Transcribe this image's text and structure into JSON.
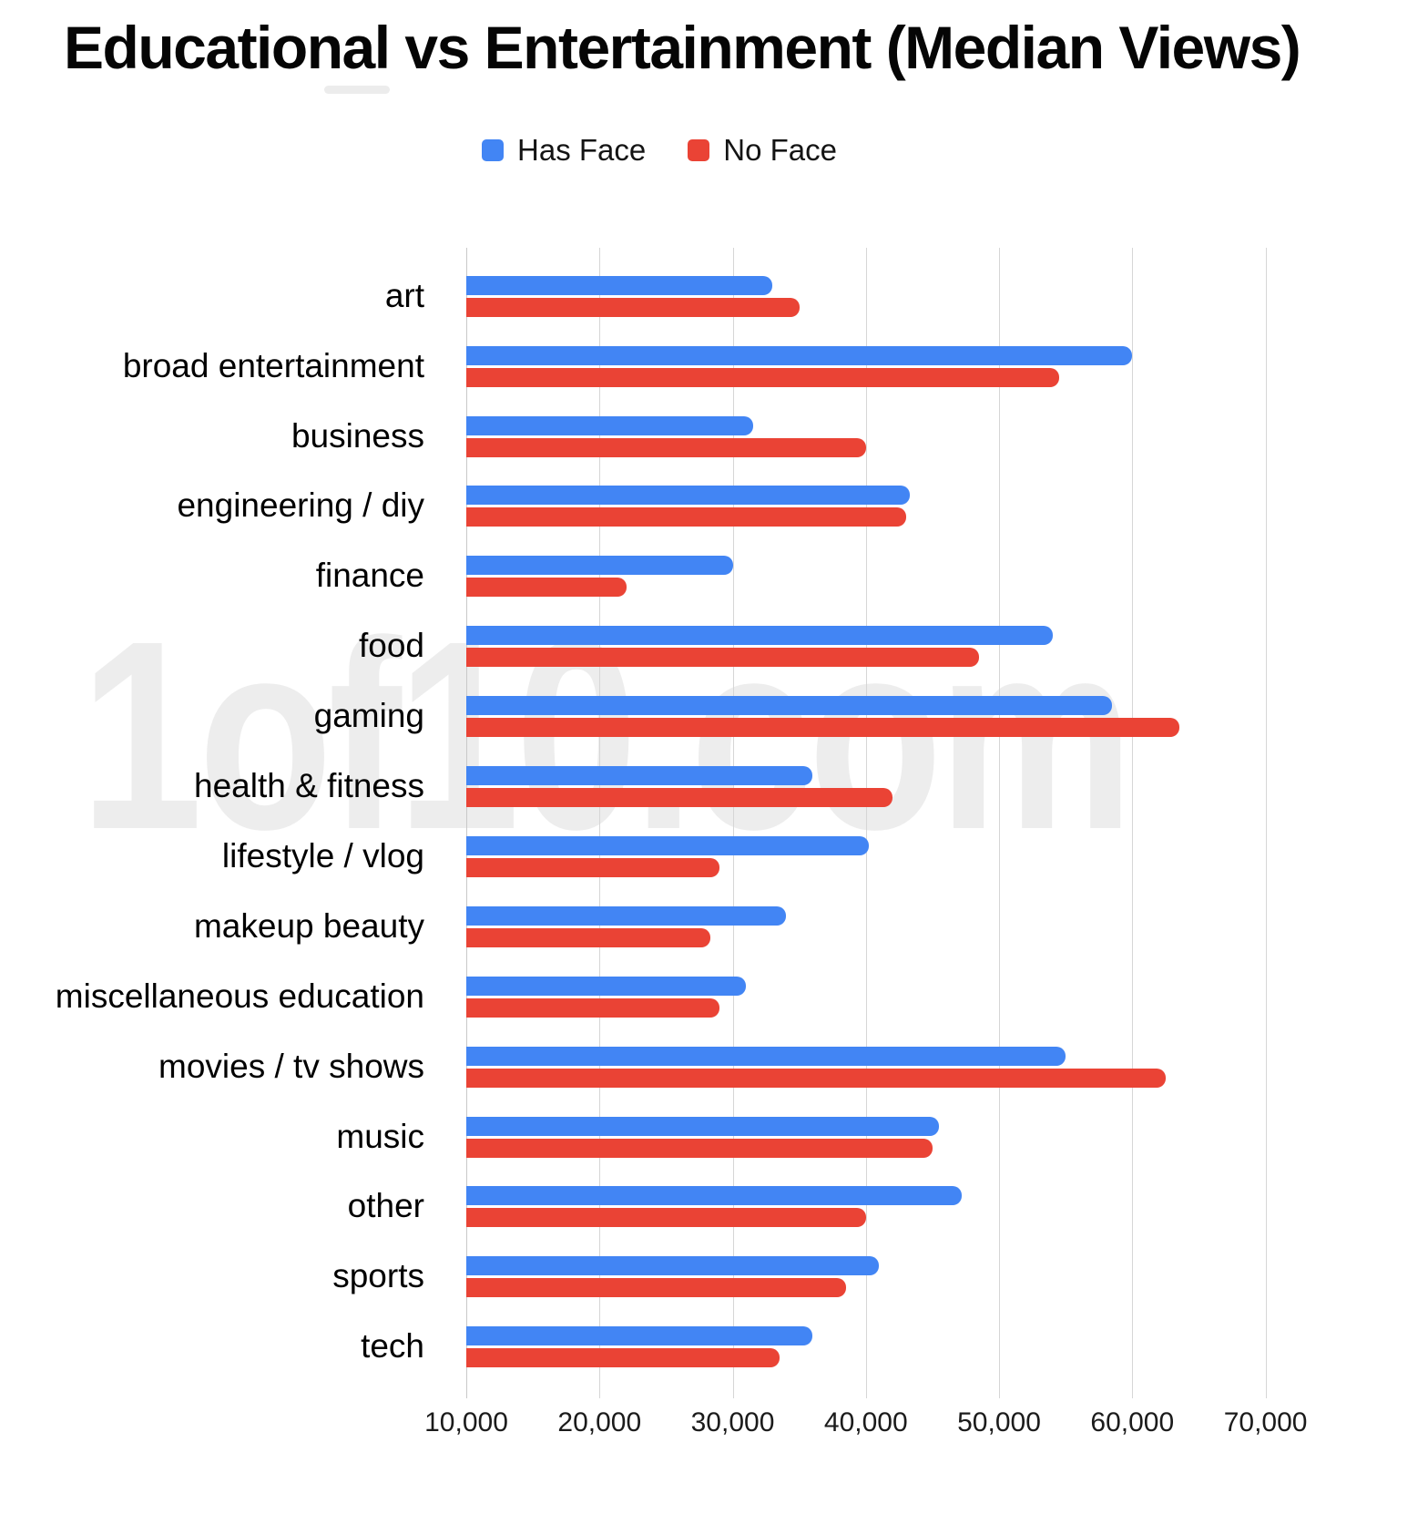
{
  "title": "Educational vs Entertainment (Median Views)",
  "watermark": "1of10.com",
  "legend": [
    {
      "label": "Has Face",
      "color": "#4285F4"
    },
    {
      "label": "No Face",
      "color": "#EA4335"
    }
  ],
  "chart_data": {
    "type": "bar",
    "orientation": "horizontal",
    "title": "Educational vs Entertainment (Median Views)",
    "xlabel": "",
    "ylabel": "",
    "grid": true,
    "legend_position": "top",
    "axis": {
      "min": 10000,
      "max": 75500,
      "ticks": [
        10000,
        20000,
        30000,
        40000,
        50000,
        60000,
        70000
      ],
      "tick_labels": [
        "10,000",
        "20,000",
        "30,000",
        "40,000",
        "50,000",
        "60,000",
        "70,000"
      ]
    },
    "categories": [
      "art",
      "broad entertainment",
      "business",
      "engineering / diy",
      "finance",
      "food",
      "gaming",
      "health & fitness",
      "lifestyle / vlog",
      "makeup beauty",
      "miscellaneous education",
      "movies / tv shows",
      "music",
      "other",
      "sports",
      "tech"
    ],
    "series": [
      {
        "name": "Has Face",
        "color": "#4285F4",
        "values": [
          33000,
          60000,
          31500,
          43300,
          30000,
          54000,
          58500,
          36000,
          40200,
          34000,
          31000,
          55000,
          45500,
          47200,
          41000,
          36000
        ]
      },
      {
        "name": "No Face",
        "color": "#EA4335",
        "values": [
          35000,
          54500,
          40000,
          43000,
          22000,
          48500,
          63500,
          42000,
          29000,
          28300,
          29000,
          62500,
          45000,
          40000,
          38500,
          33500
        ]
      }
    ]
  }
}
